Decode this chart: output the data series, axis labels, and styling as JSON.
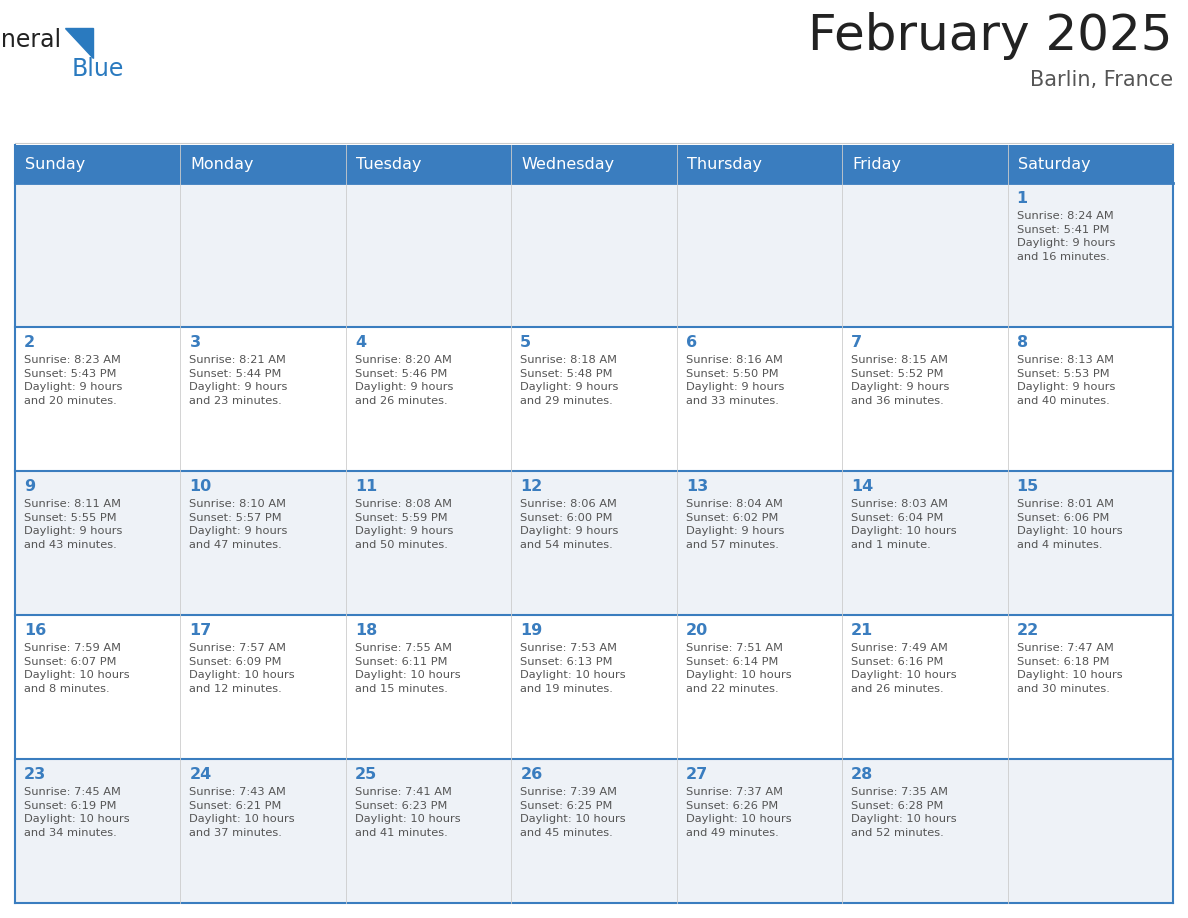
{
  "title": "February 2025",
  "subtitle": "Barlin, France",
  "days_of_week": [
    "Sunday",
    "Monday",
    "Tuesday",
    "Wednesday",
    "Thursday",
    "Friday",
    "Saturday"
  ],
  "header_bg": "#3a7dbf",
  "header_text_color": "#ffffff",
  "cell_bg_odd": "#eef2f7",
  "cell_bg_even": "#ffffff",
  "border_color": "#3a7dbf",
  "day_number_color": "#3a7dbf",
  "text_color": "#555555",
  "title_color": "#222222",
  "subtitle_color": "#555555",
  "logo_general_color": "#222222",
  "logo_blue_color": "#2a7abf",
  "weeks": [
    {
      "days": [
        {
          "date": null,
          "info": null
        },
        {
          "date": null,
          "info": null
        },
        {
          "date": null,
          "info": null
        },
        {
          "date": null,
          "info": null
        },
        {
          "date": null,
          "info": null
        },
        {
          "date": null,
          "info": null
        },
        {
          "date": 1,
          "info": "Sunrise: 8:24 AM\nSunset: 5:41 PM\nDaylight: 9 hours\nand 16 minutes."
        }
      ]
    },
    {
      "days": [
        {
          "date": 2,
          "info": "Sunrise: 8:23 AM\nSunset: 5:43 PM\nDaylight: 9 hours\nand 20 minutes."
        },
        {
          "date": 3,
          "info": "Sunrise: 8:21 AM\nSunset: 5:44 PM\nDaylight: 9 hours\nand 23 minutes."
        },
        {
          "date": 4,
          "info": "Sunrise: 8:20 AM\nSunset: 5:46 PM\nDaylight: 9 hours\nand 26 minutes."
        },
        {
          "date": 5,
          "info": "Sunrise: 8:18 AM\nSunset: 5:48 PM\nDaylight: 9 hours\nand 29 minutes."
        },
        {
          "date": 6,
          "info": "Sunrise: 8:16 AM\nSunset: 5:50 PM\nDaylight: 9 hours\nand 33 minutes."
        },
        {
          "date": 7,
          "info": "Sunrise: 8:15 AM\nSunset: 5:52 PM\nDaylight: 9 hours\nand 36 minutes."
        },
        {
          "date": 8,
          "info": "Sunrise: 8:13 AM\nSunset: 5:53 PM\nDaylight: 9 hours\nand 40 minutes."
        }
      ]
    },
    {
      "days": [
        {
          "date": 9,
          "info": "Sunrise: 8:11 AM\nSunset: 5:55 PM\nDaylight: 9 hours\nand 43 minutes."
        },
        {
          "date": 10,
          "info": "Sunrise: 8:10 AM\nSunset: 5:57 PM\nDaylight: 9 hours\nand 47 minutes."
        },
        {
          "date": 11,
          "info": "Sunrise: 8:08 AM\nSunset: 5:59 PM\nDaylight: 9 hours\nand 50 minutes."
        },
        {
          "date": 12,
          "info": "Sunrise: 8:06 AM\nSunset: 6:00 PM\nDaylight: 9 hours\nand 54 minutes."
        },
        {
          "date": 13,
          "info": "Sunrise: 8:04 AM\nSunset: 6:02 PM\nDaylight: 9 hours\nand 57 minutes."
        },
        {
          "date": 14,
          "info": "Sunrise: 8:03 AM\nSunset: 6:04 PM\nDaylight: 10 hours\nand 1 minute."
        },
        {
          "date": 15,
          "info": "Sunrise: 8:01 AM\nSunset: 6:06 PM\nDaylight: 10 hours\nand 4 minutes."
        }
      ]
    },
    {
      "days": [
        {
          "date": 16,
          "info": "Sunrise: 7:59 AM\nSunset: 6:07 PM\nDaylight: 10 hours\nand 8 minutes."
        },
        {
          "date": 17,
          "info": "Sunrise: 7:57 AM\nSunset: 6:09 PM\nDaylight: 10 hours\nand 12 minutes."
        },
        {
          "date": 18,
          "info": "Sunrise: 7:55 AM\nSunset: 6:11 PM\nDaylight: 10 hours\nand 15 minutes."
        },
        {
          "date": 19,
          "info": "Sunrise: 7:53 AM\nSunset: 6:13 PM\nDaylight: 10 hours\nand 19 minutes."
        },
        {
          "date": 20,
          "info": "Sunrise: 7:51 AM\nSunset: 6:14 PM\nDaylight: 10 hours\nand 22 minutes."
        },
        {
          "date": 21,
          "info": "Sunrise: 7:49 AM\nSunset: 6:16 PM\nDaylight: 10 hours\nand 26 minutes."
        },
        {
          "date": 22,
          "info": "Sunrise: 7:47 AM\nSunset: 6:18 PM\nDaylight: 10 hours\nand 30 minutes."
        }
      ]
    },
    {
      "days": [
        {
          "date": 23,
          "info": "Sunrise: 7:45 AM\nSunset: 6:19 PM\nDaylight: 10 hours\nand 34 minutes."
        },
        {
          "date": 24,
          "info": "Sunrise: 7:43 AM\nSunset: 6:21 PM\nDaylight: 10 hours\nand 37 minutes."
        },
        {
          "date": 25,
          "info": "Sunrise: 7:41 AM\nSunset: 6:23 PM\nDaylight: 10 hours\nand 41 minutes."
        },
        {
          "date": 26,
          "info": "Sunrise: 7:39 AM\nSunset: 6:25 PM\nDaylight: 10 hours\nand 45 minutes."
        },
        {
          "date": 27,
          "info": "Sunrise: 7:37 AM\nSunset: 6:26 PM\nDaylight: 10 hours\nand 49 minutes."
        },
        {
          "date": 28,
          "info": "Sunrise: 7:35 AM\nSunset: 6:28 PM\nDaylight: 10 hours\nand 52 minutes."
        },
        {
          "date": null,
          "info": null
        }
      ]
    }
  ]
}
